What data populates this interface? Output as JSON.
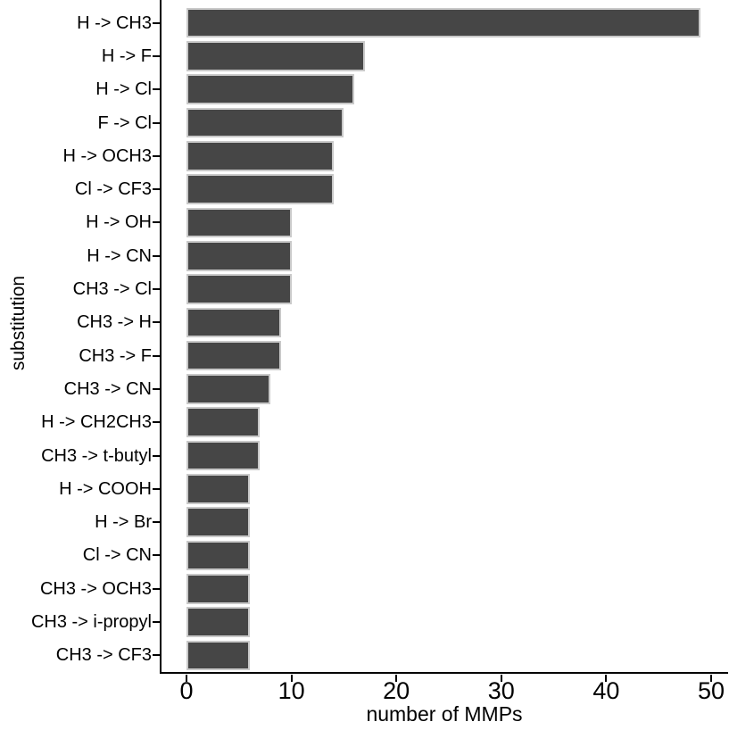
{
  "chart_data": {
    "type": "bar",
    "orientation": "horizontal",
    "title": "",
    "xlabel": "number of MMPs",
    "ylabel": "substitution",
    "categories": [
      "H -> CH3",
      "H -> F",
      "H -> Cl",
      "F -> Cl",
      "H -> OCH3",
      "Cl -> CF3",
      "H -> OH",
      "H -> CN",
      "CH3 -> Cl",
      "CH3 -> H",
      "CH3 -> F",
      "CH3 -> CN",
      "H -> CH2CH3",
      "CH3 -> t-butyl",
      "H -> COOH",
      "H -> Br",
      "Cl -> CN",
      "CH3 -> OCH3",
      "CH3 -> i-propyl",
      "CH3 -> CF3"
    ],
    "values": [
      49,
      17,
      16,
      15,
      14,
      14,
      10,
      10,
      10,
      9,
      9,
      8,
      7,
      7,
      6,
      6,
      6,
      6,
      6,
      6
    ],
    "xlim": [
      0,
      50
    ],
    "xticks": [
      0,
      10,
      20,
      30,
      40,
      50
    ],
    "grid": false,
    "legend": null,
    "bar_color": "#464646",
    "bar_border_color": "#c9c9c9",
    "axis_color": "#000000",
    "text_color": "#000000",
    "background": "#ffffff"
  }
}
